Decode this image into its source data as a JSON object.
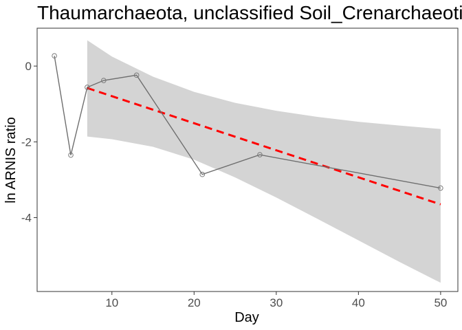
{
  "chart_data": {
    "type": "line",
    "title": "Thaumarchaeota, unclassified Soil_Crenarchaeotic_Group(SCG)",
    "xlabel": "Day",
    "ylabel": "ln ARNIS ratio",
    "xlim": [
      0.9,
      52.1
    ],
    "ylim": [
      -5.95,
      1.0
    ],
    "x_ticks": [
      10,
      20,
      30,
      40,
      50
    ],
    "y_ticks": [
      0,
      -2,
      -4
    ],
    "x_tick_labels": [
      "10",
      "20",
      "30",
      "40",
      "50"
    ],
    "y_tick_labels": [
      "0",
      "-2",
      "-4"
    ],
    "grid": false,
    "legend": "none",
    "series": [
      {
        "x": [
          3,
          5,
          7,
          9,
          13,
          21,
          28,
          50
        ],
        "y": [
          0.27,
          -2.35,
          -0.56,
          -0.38,
          -0.24,
          -2.86,
          -2.34,
          -3.22
        ]
      }
    ],
    "trend": {
      "x": [
        7,
        50
      ],
      "y": [
        -0.58,
        -3.65
      ]
    },
    "confidence_band": {
      "x": [
        7,
        10,
        15,
        20,
        25,
        30,
        35,
        40,
        45,
        50
      ],
      "upper": [
        0.68,
        0.25,
        -0.28,
        -0.68,
        -0.97,
        -1.18,
        -1.34,
        -1.47,
        -1.57,
        -1.66
      ],
      "lower": [
        -1.86,
        -1.93,
        -2.13,
        -2.47,
        -2.94,
        -3.47,
        -4.03,
        -4.6,
        -5.17,
        -5.72
      ]
    },
    "colors": {
      "series_line": "#6e6e6e",
      "point_stroke": "#7a7a7a",
      "trend": "#ff0000",
      "band": "#d4d4d4",
      "panel_border": "#333333"
    }
  }
}
